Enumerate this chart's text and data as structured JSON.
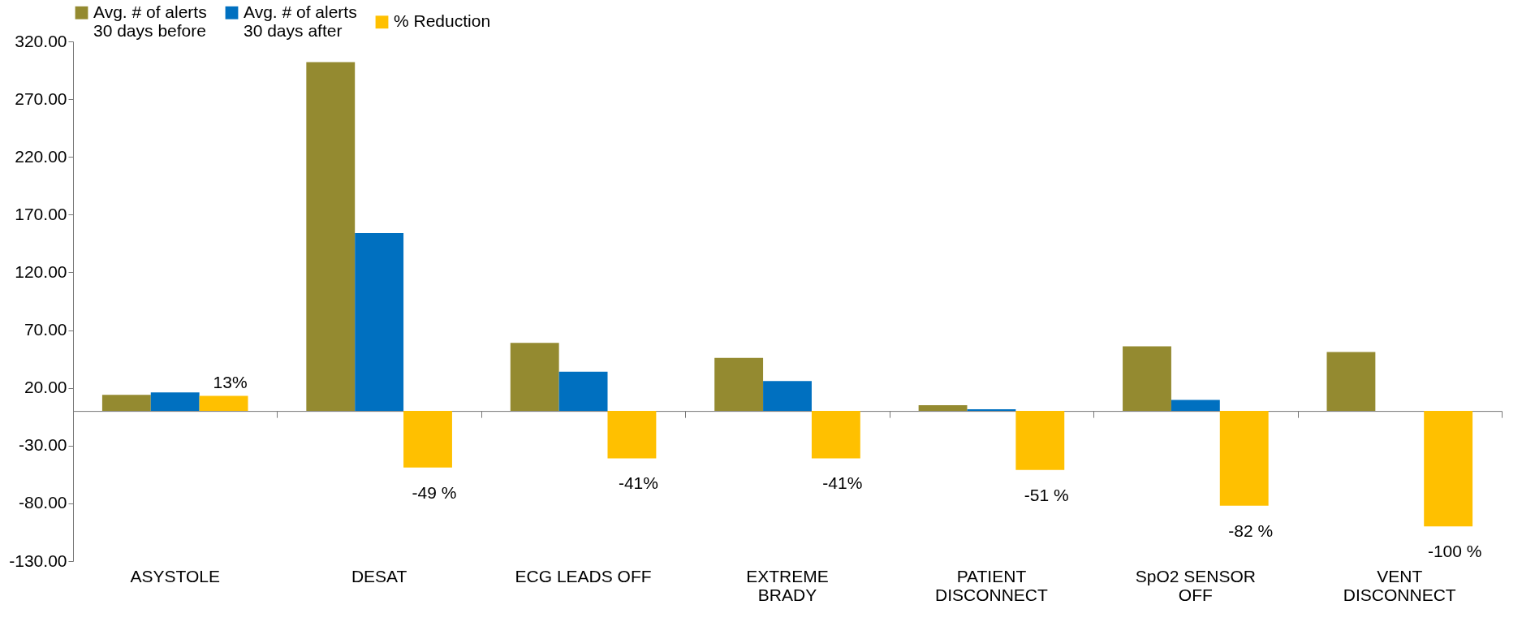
{
  "chart_data": {
    "type": "bar",
    "categories": [
      "ASYSTOLE",
      "DESAT",
      "ECG LEADS OFF",
      "EXTREME\nBRADY",
      "PATIENT\nDISCONNECT",
      "SpO2 SENSOR\nOFF",
      "VENT\nDISCONNECT"
    ],
    "series": [
      {
        "name": "Avg. # of alerts\n30 days before",
        "color": "#948a30",
        "values": [
          14,
          302,
          59,
          46,
          5,
          56,
          51
        ]
      },
      {
        "name": "Avg. # of alerts\n30 days after",
        "color": "#0070c0",
        "values": [
          16,
          154,
          34,
          26,
          1.5,
          9.5,
          0
        ]
      },
      {
        "name": "% Reduction",
        "color": "#ffc000",
        "values": [
          13,
          -49,
          -41,
          -41,
          -51,
          -82,
          -100
        ],
        "value_labels": [
          "13%",
          "-49 %",
          "-41%",
          "-41%",
          "-51 %",
          "-82 %",
          "-100 %"
        ]
      }
    ],
    "ylim": [
      -130,
      320
    ],
    "yticks": [
      {
        "value": -130,
        "label": "-130.00"
      },
      {
        "value": -80,
        "label": "-80.00"
      },
      {
        "value": -30,
        "label": "-30.00"
      },
      {
        "value": 20,
        "label": "20.00"
      },
      {
        "value": 70,
        "label": "70.00"
      },
      {
        "value": 120,
        "label": "120.00"
      },
      {
        "value": 170,
        "label": "170.00"
      },
      {
        "value": 220,
        "label": "220.00"
      },
      {
        "value": 270,
        "label": "270.00"
      },
      {
        "value": 320,
        "label": "320.00"
      }
    ],
    "legend": "top"
  }
}
